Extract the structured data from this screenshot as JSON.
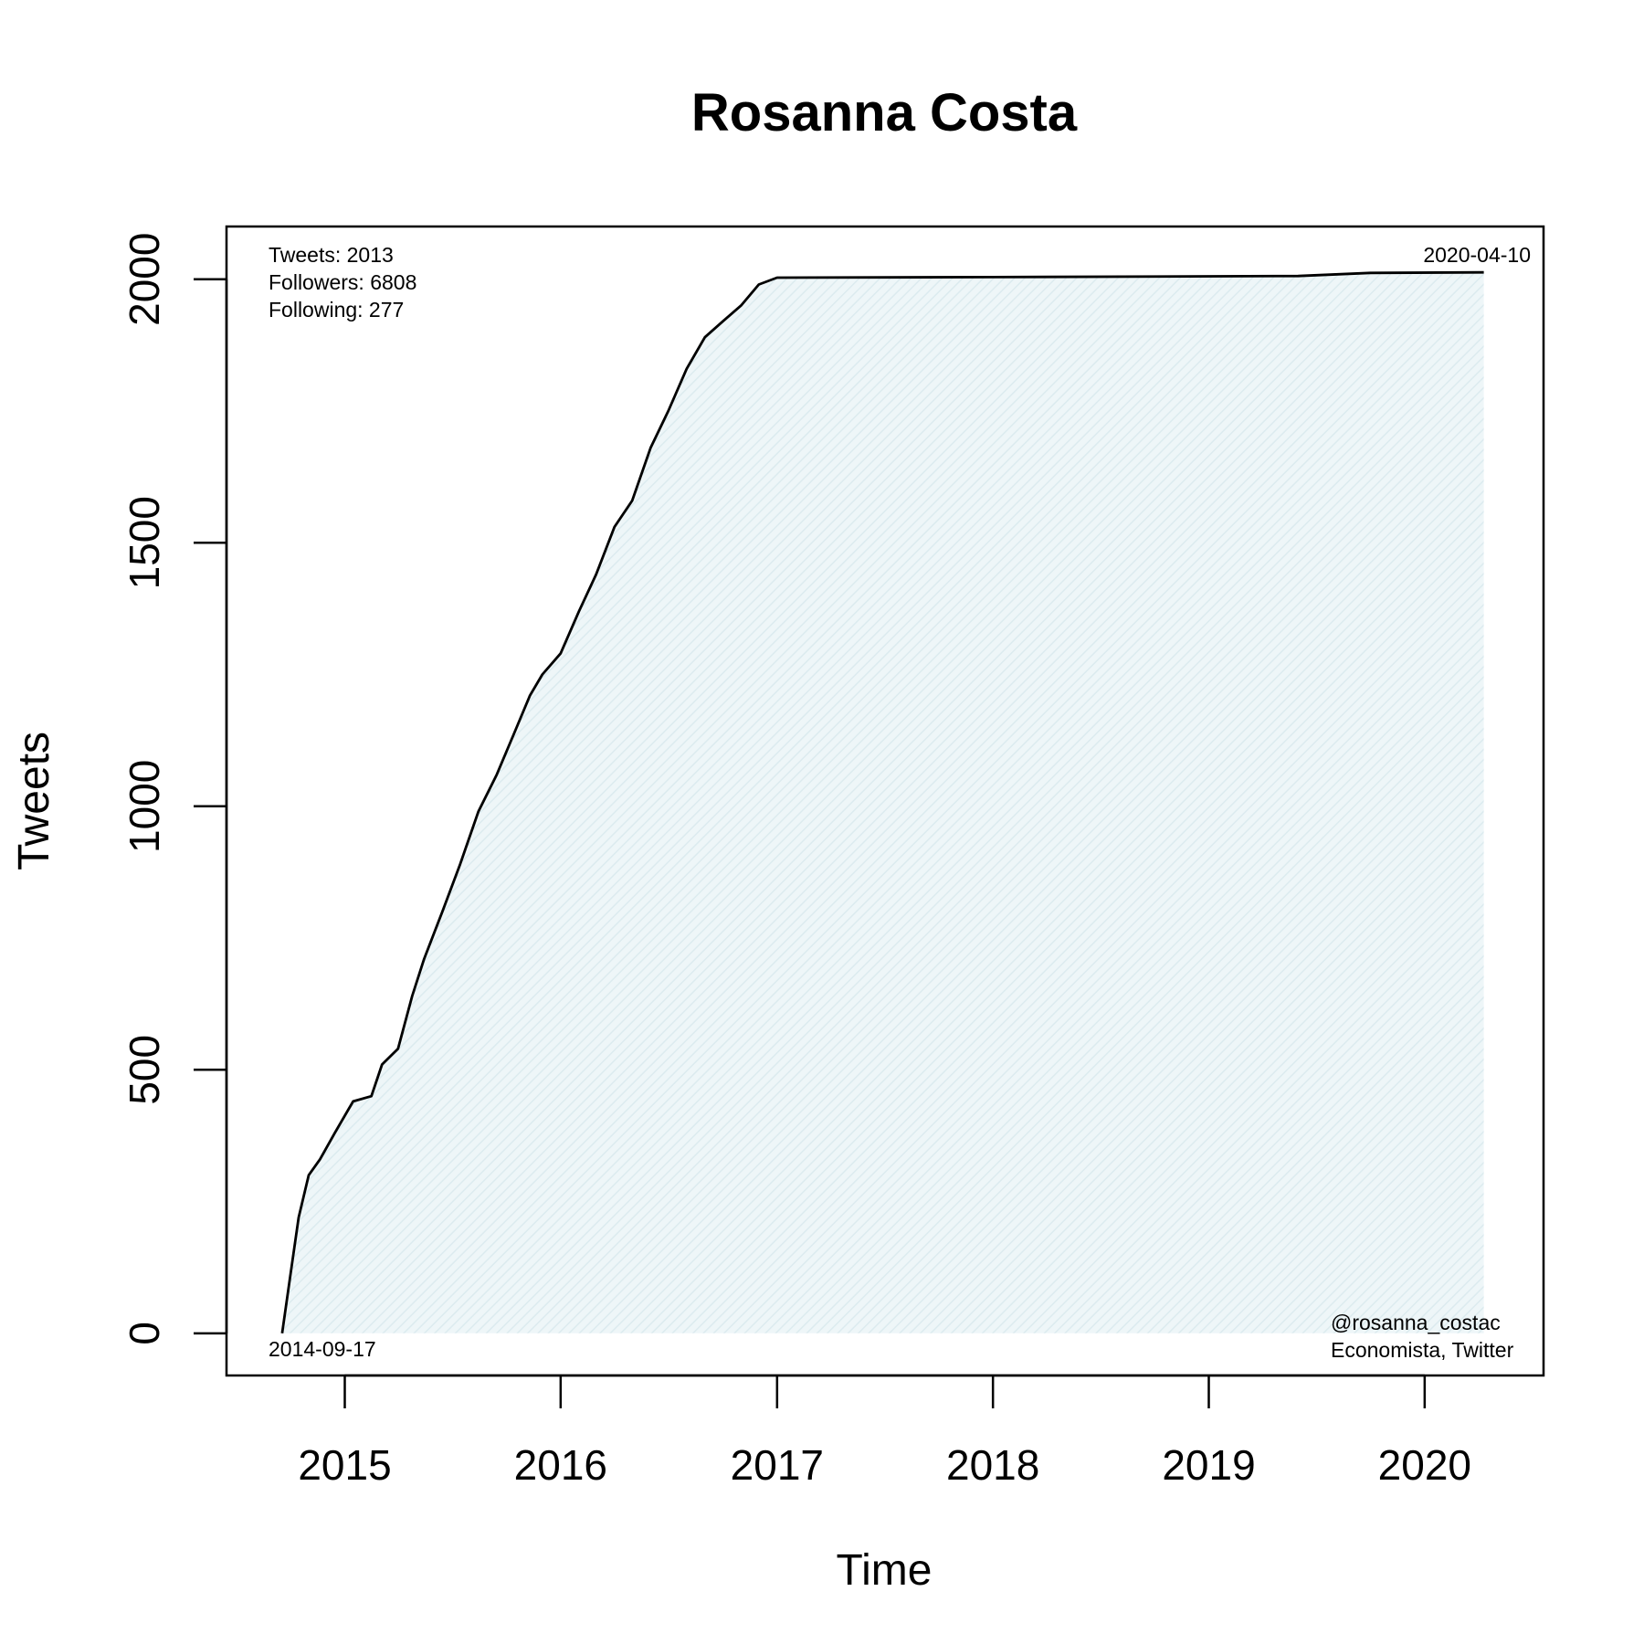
{
  "chart_data": {
    "type": "area",
    "title": "Rosanna Costa",
    "xlabel": "Time",
    "ylabel": "Tweets",
    "xlim": [
      "2014-06-15",
      "2020-07-20"
    ],
    "ylim": [
      -80,
      2100
    ],
    "x_ticks": [
      {
        "date": "2015-01-01",
        "label": "2015"
      },
      {
        "date": "2016-01-01",
        "label": "2016"
      },
      {
        "date": "2017-01-01",
        "label": "2017"
      },
      {
        "date": "2018-01-01",
        "label": "2018"
      },
      {
        "date": "2019-01-01",
        "label": "2019"
      },
      {
        "date": "2020-01-01",
        "label": "2020"
      }
    ],
    "y_ticks": [
      0,
      500,
      1000,
      1500,
      2000
    ],
    "grid": false,
    "line_color": "#000000",
    "fill_color": "#e6f2f5",
    "series": [
      {
        "x": [
          "2014-09-17",
          "2014-10-01",
          "2014-10-15",
          "2014-11-01",
          "2014-11-20",
          "2014-12-15",
          "2015-01-15",
          "2015-02-15",
          "2015-03-05",
          "2015-04-01",
          "2015-04-25",
          "2015-05-15",
          "2015-06-15",
          "2015-07-15",
          "2015-08-15",
          "2015-09-15",
          "2015-10-15",
          "2015-11-10",
          "2015-12-01",
          "2016-01-01",
          "2016-02-01",
          "2016-03-01",
          "2016-04-01",
          "2016-05-01",
          "2016-06-01",
          "2016-07-01",
          "2016-08-01",
          "2016-09-01",
          "2016-10-01",
          "2016-11-01",
          "2016-12-01",
          "2017-01-01",
          "2018-01-01",
          "2019-06-01",
          "2019-10-01",
          "2020-04-10"
        ],
        "y": [
          0,
          110,
          220,
          300,
          330,
          380,
          440,
          450,
          510,
          540,
          640,
          710,
          800,
          890,
          990,
          1060,
          1140,
          1210,
          1250,
          1290,
          1370,
          1440,
          1530,
          1580,
          1680,
          1750,
          1830,
          1890,
          1920,
          1950,
          1990,
          2003,
          2004,
          2006,
          2012,
          2013
        ]
      }
    ],
    "annotations": {
      "stats": [
        "Tweets: 2013",
        "Followers: 6808",
        "Following: 277"
      ],
      "end_date": "2020-04-10",
      "start_date": "2014-09-17",
      "handle": "@rosanna_costac",
      "description": "Economista, Twitter"
    }
  }
}
